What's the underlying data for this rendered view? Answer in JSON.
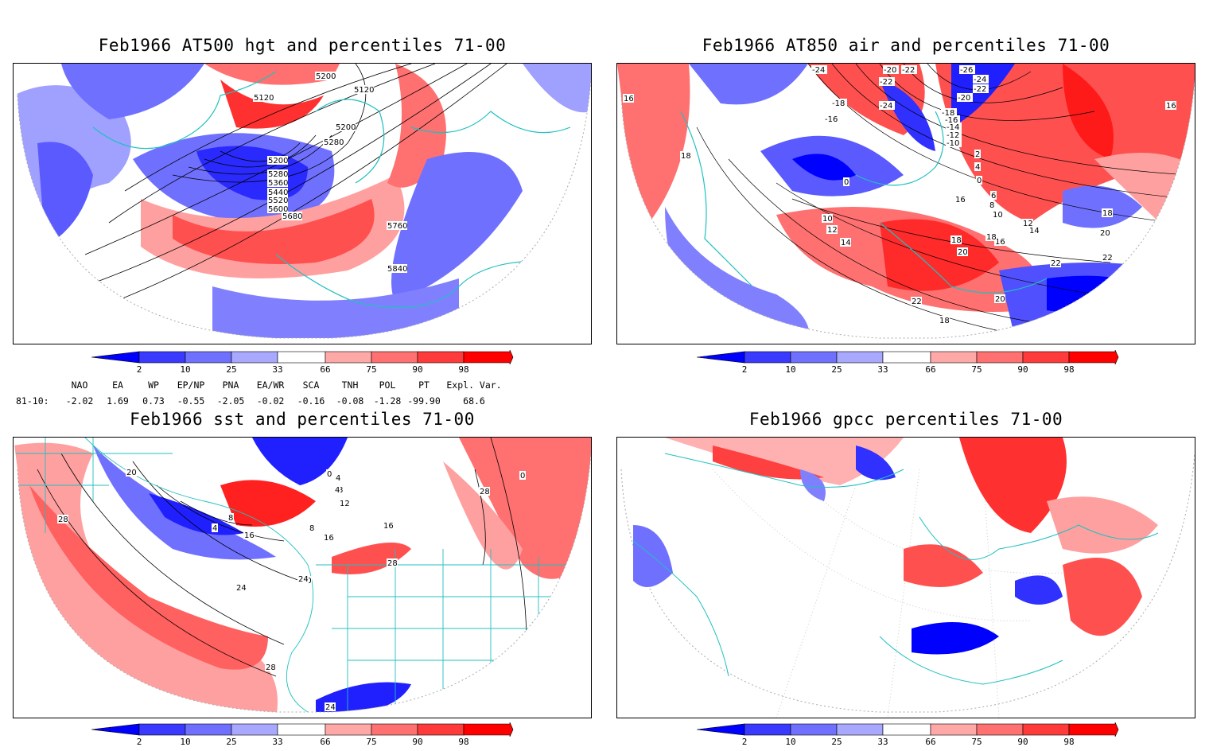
{
  "panels": [
    {
      "title": "Feb1966 AT500 hgt and percentiles 71-00",
      "contour_labels": [
        "5120",
        "5200",
        "5120",
        "5200",
        "5280",
        "5200",
        "5280",
        "5360",
        "5440",
        "5520",
        "5600",
        "5680",
        "5760",
        "5840"
      ]
    },
    {
      "title": "Feb1966 AT850 air and percentiles 71-00",
      "contour_labels": [
        "-24",
        "-20",
        "-22",
        "-26",
        "-24",
        "-22",
        "-22",
        "-20",
        "-18",
        "-24",
        "-18",
        "-16",
        "-16",
        "-14",
        "-12",
        "-10",
        "0",
        "2",
        "4",
        "0",
        "16",
        "18",
        "16",
        "6",
        "8",
        "10",
        "12",
        "14",
        "16",
        "18",
        "20",
        "18",
        "20",
        "22",
        "22",
        "20",
        "22",
        "18",
        "10",
        "12",
        "14",
        "16",
        "18"
      ]
    },
    {
      "title": "Feb1966 sst and percentiles 71-00",
      "contour_labels": [
        "20",
        "28",
        "0",
        "4",
        "8",
        "12",
        "16",
        "20",
        "24",
        "28",
        "24",
        "28",
        "0",
        "4",
        "4",
        "8",
        "8",
        "16",
        "16",
        "24",
        "28"
      ]
    },
    {
      "title": "Feb1966 gpcc percentiles 71-00",
      "contour_labels": []
    }
  ],
  "colorbar": {
    "labels": [
      "2",
      "10",
      "25",
      "33",
      "66",
      "75",
      "90",
      "98"
    ],
    "colors": [
      "#0000ff",
      "#3a3aff",
      "#7070ff",
      "#a8a8ff",
      "#ffffff",
      "#ffa8a8",
      "#ff7070",
      "#ff3a3a",
      "#ff0000"
    ]
  },
  "indices": {
    "headers": [
      "NAO",
      "EA",
      "WP",
      "EP/NP",
      "PNA",
      "EA/WR",
      "SCA",
      "TNH",
      "POL",
      "PT",
      "Expl. Var."
    ],
    "row_label": "81-10:",
    "values": [
      "-2.02",
      "1.69",
      "0.73",
      "-0.55",
      "-2.05",
      "-0.02",
      "-0.16",
      "-0.08",
      "-1.28",
      "-99.90",
      "68.6"
    ]
  },
  "colors": {
    "blue_strong": "#0000ff",
    "blue_mid": "#4040ff",
    "blue_light": "#a0a0ff",
    "red_strong": "#ff0000",
    "red_mid": "#ff5050",
    "red_light": "#ffa0a0",
    "coast": "#20c0c0"
  }
}
